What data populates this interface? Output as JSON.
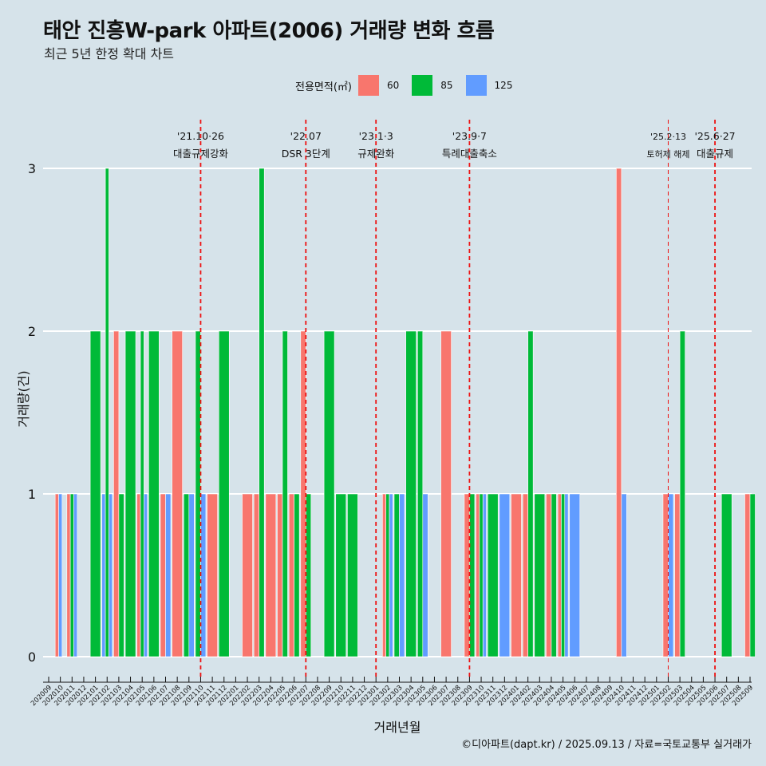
{
  "title": "태안 진흥W-park 아파트(2006) 거래량 변화 흐름",
  "subtitle": "최근 5년 한정 확대 차트",
  "caption": "©디아파트(dapt.kr) / 2025.09.13 / 자료=국토교통부 실거래가",
  "legend": {
    "title": "전용면적(㎡)",
    "items": [
      {
        "label": "60",
        "color": "#f8766d"
      },
      {
        "label": "85",
        "color": "#00ba38"
      },
      {
        "label": "125",
        "color": "#619cff"
      }
    ]
  },
  "chart_data": {
    "type": "bar",
    "xlabel": "거래년월",
    "ylabel": "거래량(건)",
    "ylim": [
      0,
      3
    ],
    "yticks": [
      0,
      1,
      2,
      3
    ],
    "grid": true,
    "legend_position": "top",
    "categories": [
      "202009",
      "202010",
      "202011",
      "202012",
      "202101",
      "202102",
      "202103",
      "202104",
      "202105",
      "202106",
      "202107",
      "202108",
      "202109",
      "202110",
      "202111",
      "202112",
      "202201",
      "202202",
      "202203",
      "202204",
      "202205",
      "202206",
      "202207",
      "202208",
      "202209",
      "202210",
      "202211",
      "202212",
      "202301",
      "202302",
      "202303",
      "202304",
      "202305",
      "202306",
      "202307",
      "202308",
      "202309",
      "202310",
      "202311",
      "202312",
      "202401",
      "202402",
      "202403",
      "202404",
      "202405",
      "202406",
      "202407",
      "202408",
      "202409",
      "202410",
      "202411",
      "202412",
      "202501",
      "202502",
      "202503",
      "202504",
      "202505",
      "202506",
      "202507",
      "202508",
      "202509"
    ],
    "bars": [
      {
        "month": "202010",
        "slot": 0,
        "n": 3,
        "size": "60",
        "value": 1
      },
      {
        "month": "202010",
        "slot": 1,
        "n": 3,
        "size": "125",
        "value": 1
      },
      {
        "month": "202011",
        "slot": 0,
        "n": 3,
        "size": "60",
        "value": 1
      },
      {
        "month": "202011",
        "slot": 1,
        "n": 3,
        "size": "85",
        "value": 1
      },
      {
        "month": "202011",
        "slot": 2,
        "n": 3,
        "size": "125",
        "value": 1
      },
      {
        "month": "202101",
        "slot": 0,
        "n": 1,
        "size": "85",
        "value": 2
      },
      {
        "month": "202102",
        "slot": 0,
        "n": 3,
        "size": "125",
        "value": 1
      },
      {
        "month": "202102",
        "slot": 1,
        "n": 3,
        "size": "85",
        "value": 3
      },
      {
        "month": "202102",
        "slot": 2,
        "n": 3,
        "size": "125",
        "value": 1
      },
      {
        "month": "202103",
        "slot": 0,
        "n": 2,
        "size": "60",
        "value": 2
      },
      {
        "month": "202103",
        "slot": 1,
        "n": 2,
        "size": "85",
        "value": 1
      },
      {
        "month": "202104",
        "slot": 0,
        "n": 1,
        "size": "85",
        "value": 2
      },
      {
        "month": "202105",
        "slot": 0,
        "n": 3,
        "size": "60",
        "value": 1
      },
      {
        "month": "202105",
        "slot": 1,
        "n": 3,
        "size": "85",
        "value": 2
      },
      {
        "month": "202105",
        "slot": 2,
        "n": 3,
        "size": "125",
        "value": 1
      },
      {
        "month": "202106",
        "slot": 0,
        "n": 1,
        "size": "85",
        "value": 2
      },
      {
        "month": "202107",
        "slot": 0,
        "n": 2,
        "size": "60",
        "value": 1
      },
      {
        "month": "202107",
        "slot": 1,
        "n": 2,
        "size": "125",
        "value": 1
      },
      {
        "month": "202108",
        "slot": 0,
        "n": 1,
        "size": "60",
        "value": 2
      },
      {
        "month": "202109",
        "slot": 0,
        "n": 2,
        "size": "85",
        "value": 1
      },
      {
        "month": "202109",
        "slot": 1,
        "n": 2,
        "size": "125",
        "value": 1
      },
      {
        "month": "202110",
        "slot": 0,
        "n": 2,
        "size": "85",
        "value": 2
      },
      {
        "month": "202110",
        "slot": 1,
        "n": 2,
        "size": "125",
        "value": 1
      },
      {
        "month": "202111",
        "slot": 0,
        "n": 1,
        "size": "60",
        "value": 1
      },
      {
        "month": "202112",
        "slot": 0,
        "n": 1,
        "size": "85",
        "value": 2
      },
      {
        "month": "202202",
        "slot": 0,
        "n": 1,
        "size": "60",
        "value": 1
      },
      {
        "month": "202203",
        "slot": 0,
        "n": 2,
        "size": "60",
        "value": 1
      },
      {
        "month": "202203",
        "slot": 1,
        "n": 2,
        "size": "85",
        "value": 3
      },
      {
        "month": "202204",
        "slot": 0,
        "n": 1,
        "size": "60",
        "value": 1
      },
      {
        "month": "202205",
        "slot": 0,
        "n": 2,
        "size": "60",
        "value": 1
      },
      {
        "month": "202205",
        "slot": 1,
        "n": 2,
        "size": "85",
        "value": 2
      },
      {
        "month": "202206",
        "slot": 0,
        "n": 2,
        "size": "60",
        "value": 1
      },
      {
        "month": "202206",
        "slot": 1,
        "n": 2,
        "size": "85",
        "value": 1
      },
      {
        "month": "202207",
        "slot": 0,
        "n": 2,
        "size": "60",
        "value": 2
      },
      {
        "month": "202207",
        "slot": 1,
        "n": 2,
        "size": "85",
        "value": 1
      },
      {
        "month": "202209",
        "slot": 0,
        "n": 1,
        "size": "85",
        "value": 2
      },
      {
        "month": "202210",
        "slot": 0,
        "n": 1,
        "size": "85",
        "value": 1
      },
      {
        "month": "202211",
        "slot": 0,
        "n": 1,
        "size": "85",
        "value": 1
      },
      {
        "month": "202302",
        "slot": 0,
        "n": 3,
        "size": "60",
        "value": 1
      },
      {
        "month": "202302",
        "slot": 1,
        "n": 3,
        "size": "85",
        "value": 1
      },
      {
        "month": "202302",
        "slot": 2,
        "n": 3,
        "size": "125",
        "value": 1
      },
      {
        "month": "202303",
        "slot": 0,
        "n": 2,
        "size": "85",
        "value": 1
      },
      {
        "month": "202303",
        "slot": 1,
        "n": 2,
        "size": "125",
        "value": 1
      },
      {
        "month": "202304",
        "slot": 0,
        "n": 1,
        "size": "85",
        "value": 2
      },
      {
        "month": "202305",
        "slot": 0,
        "n": 2,
        "size": "85",
        "value": 2
      },
      {
        "month": "202305",
        "slot": 1,
        "n": 2,
        "size": "125",
        "value": 1
      },
      {
        "month": "202307",
        "slot": 0,
        "n": 1,
        "size": "60",
        "value": 2
      },
      {
        "month": "202309",
        "slot": 0,
        "n": 2,
        "size": "60",
        "value": 1
      },
      {
        "month": "202309",
        "slot": 1,
        "n": 2,
        "size": "85",
        "value": 1
      },
      {
        "month": "202310",
        "slot": 0,
        "n": 3,
        "size": "60",
        "value": 1
      },
      {
        "month": "202310",
        "slot": 1,
        "n": 3,
        "size": "85",
        "value": 1
      },
      {
        "month": "202310",
        "slot": 2,
        "n": 3,
        "size": "125",
        "value": 1
      },
      {
        "month": "202311",
        "slot": 0,
        "n": 1,
        "size": "85",
        "value": 1
      },
      {
        "month": "202312",
        "slot": 0,
        "n": 1,
        "size": "125",
        "value": 1
      },
      {
        "month": "202401",
        "slot": 0,
        "n": 1,
        "size": "60",
        "value": 1
      },
      {
        "month": "202402",
        "slot": 0,
        "n": 2,
        "size": "60",
        "value": 1
      },
      {
        "month": "202402",
        "slot": 1,
        "n": 2,
        "size": "85",
        "value": 2
      },
      {
        "month": "202403",
        "slot": 0,
        "n": 1,
        "size": "85",
        "value": 1
      },
      {
        "month": "202404",
        "slot": 0,
        "n": 2,
        "size": "60",
        "value": 1
      },
      {
        "month": "202404",
        "slot": 1,
        "n": 2,
        "size": "85",
        "value": 1
      },
      {
        "month": "202405",
        "slot": 0,
        "n": 3,
        "size": "60",
        "value": 1
      },
      {
        "month": "202405",
        "slot": 1,
        "n": 3,
        "size": "85",
        "value": 1
      },
      {
        "month": "202405",
        "slot": 2,
        "n": 3,
        "size": "125",
        "value": 1
      },
      {
        "month": "202406",
        "slot": 0,
        "n": 1,
        "size": "125",
        "value": 1
      },
      {
        "month": "202410",
        "slot": 0,
        "n": 2,
        "size": "60",
        "value": 3
      },
      {
        "month": "202410",
        "slot": 1,
        "n": 2,
        "size": "125",
        "value": 1
      },
      {
        "month": "202502",
        "slot": 0,
        "n": 2,
        "size": "60",
        "value": 1
      },
      {
        "month": "202502",
        "slot": 1,
        "n": 2,
        "size": "125",
        "value": 1
      },
      {
        "month": "202503",
        "slot": 0,
        "n": 2,
        "size": "60",
        "value": 1
      },
      {
        "month": "202503",
        "slot": 1,
        "n": 2,
        "size": "85",
        "value": 2
      },
      {
        "month": "202507",
        "slot": 0,
        "n": 1,
        "size": "85",
        "value": 1
      },
      {
        "month": "202509",
        "slot": 0,
        "n": 2,
        "size": "60",
        "value": 1
      },
      {
        "month": "202509",
        "slot": 1,
        "n": 2,
        "size": "85",
        "value": 1
      }
    ],
    "events": [
      {
        "at": "202110",
        "date": "'21.10·26",
        "label": "대출규제강화"
      },
      {
        "at": "202207",
        "date": "'22.07",
        "label": "DSR 3단계"
      },
      {
        "at": "202301",
        "date": "'23.1·3",
        "label": "규제완화"
      },
      {
        "at": "202309",
        "date": "'23.9·7",
        "label": "특례대출축소"
      },
      {
        "at": "202502",
        "date": "'25.2·13",
        "label": "토허제 해제"
      },
      {
        "at": "202506",
        "date": "'25.6·27",
        "label": "대출규제"
      }
    ]
  }
}
